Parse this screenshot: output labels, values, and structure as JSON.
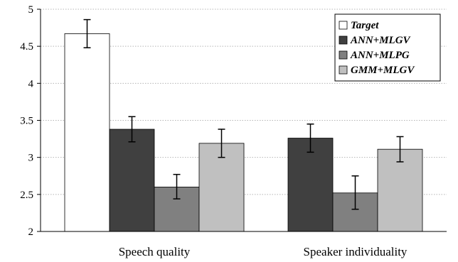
{
  "chart_data": {
    "type": "bar",
    "categories": [
      "Speech quality",
      "Speaker individuality"
    ],
    "ylim": [
      2,
      5
    ],
    "yticks": [
      "2",
      "2.5",
      "3",
      "3.5",
      "4",
      "4.5",
      "5"
    ],
    "ytick_values": [
      2,
      2.5,
      3,
      3.5,
      4,
      4.5,
      5
    ],
    "grid": true,
    "legend_position": "top-right",
    "error_bars": true,
    "series": [
      {
        "name": "Target",
        "color": "#ffffff",
        "values": [
          4.67,
          null
        ],
        "err_low": [
          4.48,
          null
        ],
        "err_high": [
          4.86,
          null
        ]
      },
      {
        "name": "ANN+MLGV",
        "color": "#404040",
        "values": [
          3.38,
          3.26
        ],
        "err_low": [
          3.21,
          3.07
        ],
        "err_high": [
          3.55,
          3.45
        ]
      },
      {
        "name": "ANN+MLPG",
        "color": "#808080",
        "values": [
          2.6,
          2.52
        ],
        "err_low": [
          2.44,
          2.3
        ],
        "err_high": [
          2.77,
          2.75
        ]
      },
      {
        "name": "GMM+MLGV",
        "color": "#c0c0c0",
        "values": [
          3.19,
          3.11
        ],
        "err_low": [
          3.0,
          2.94
        ],
        "err_high": [
          3.38,
          3.28
        ]
      }
    ]
  }
}
